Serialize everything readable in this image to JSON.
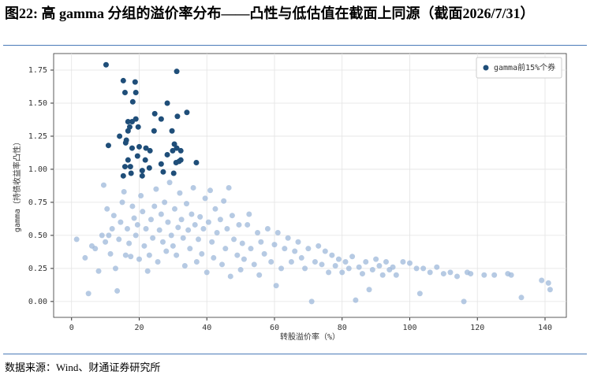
{
  "chart_data": {
    "type": "scatter",
    "title": "图22: 高 gamma 分组的溢价率分布——凸性与低估值在截面上同源（截面2026/7/31）",
    "xlabel": "转股溢价率（%）",
    "ylabel": "gamma（持债收益率凸性）",
    "source": "数据来源：Wind、财通证券研究所",
    "xlim": [
      -5.3,
      146.3
    ],
    "ylim": [
      -0.12,
      1.875
    ],
    "xticks": [
      0,
      20,
      40,
      60,
      80,
      100,
      120,
      140
    ],
    "yticks": [
      {
        "value": 0,
        "label": "0.00"
      },
      {
        "value": 0.25,
        "label": "0.25"
      },
      {
        "value": 0.5,
        "label": "0.50"
      },
      {
        "value": 0.75,
        "label": "0.75"
      },
      {
        "value": 1,
        "label": "1.00"
      },
      {
        "value": 1.25,
        "label": "1.25"
      },
      {
        "value": 1.5,
        "label": "1.50"
      },
      {
        "value": 1.75,
        "label": "1.75"
      }
    ],
    "grid": true,
    "legend": "upper right",
    "series": [
      {
        "color": "#9db8d9",
        "x": [
          1.5,
          4,
          5,
          6,
          7,
          8,
          9,
          9.5,
          10,
          10.5,
          11,
          11.5,
          12,
          12.5,
          13,
          13.5,
          14,
          14.5,
          15,
          15.5,
          16,
          16.5,
          17,
          17.5,
          18,
          18.5,
          19,
          19.5,
          20,
          20.5,
          21,
          21.5,
          22,
          22.5,
          23,
          23.5,
          24,
          24.5,
          25,
          25.5,
          26,
          26.5,
          27,
          27.5,
          28,
          28.5,
          29,
          29.5,
          30,
          30.5,
          31,
          31.5,
          32,
          32.5,
          33,
          33.5,
          34,
          34.5,
          35,
          35.5,
          36,
          36.5,
          37,
          37.5,
          38,
          38.5,
          39,
          39.5,
          40,
          40.5,
          41,
          41.5,
          42,
          42.5,
          43,
          44,
          44.5,
          45,
          45.5,
          46,
          46.5,
          47,
          47.5,
          48,
          49,
          49.5,
          50,
          50.5,
          51,
          52,
          52.5,
          53,
          54,
          55,
          55.5,
          56,
          57,
          58,
          59,
          60,
          60.5,
          61,
          62,
          63,
          64,
          65,
          66,
          67,
          68,
          69,
          70,
          71,
          72,
          73,
          74,
          75,
          76,
          77,
          78,
          79,
          80,
          81,
          82,
          83,
          84,
          85,
          86,
          87,
          88,
          89,
          90,
          91,
          92,
          93,
          94,
          95,
          96,
          98,
          100,
          102,
          103,
          104,
          106,
          108,
          110,
          112,
          114,
          116,
          117,
          118,
          122,
          125,
          129,
          130,
          133,
          139,
          141,
          141.5
        ],
        "values": [
          0.47,
          0.33,
          0.06,
          0.42,
          0.4,
          0.23,
          0.5,
          0.88,
          0.45,
          0.7,
          0.5,
          0.36,
          0.55,
          0.65,
          0.25,
          0.08,
          0.47,
          0.6,
          0.75,
          0.83,
          0.35,
          0.55,
          0.44,
          0.34,
          0.72,
          0.63,
          0.5,
          0.58,
          0.32,
          0.8,
          0.68,
          0.42,
          0.55,
          0.23,
          0.35,
          0.62,
          0.48,
          0.72,
          0.85,
          0.3,
          0.54,
          0.66,
          0.45,
          0.75,
          0.38,
          0.6,
          0.9,
          0.5,
          0.42,
          0.7,
          0.35,
          0.56,
          0.82,
          0.62,
          0.48,
          0.27,
          0.74,
          0.54,
          0.4,
          0.66,
          0.86,
          0.58,
          0.3,
          0.47,
          0.64,
          0.36,
          0.55,
          0.78,
          0.22,
          0.6,
          0.84,
          0.45,
          0.33,
          0.7,
          0.52,
          0.62,
          0.28,
          0.76,
          0.4,
          0.55,
          0.86,
          0.19,
          0.65,
          0.47,
          0.35,
          0.58,
          0.24,
          0.44,
          0.32,
          0.58,
          0.66,
          0.4,
          0.28,
          0.52,
          0.2,
          0.45,
          0.36,
          0.55,
          0.3,
          0.43,
          0.12,
          0.52,
          0.25,
          0.4,
          0.48,
          0.3,
          0.38,
          0.45,
          0.33,
          0.25,
          0.4,
          0.0,
          0.3,
          0.42,
          0.28,
          0.38,
          0.22,
          0.35,
          0.27,
          0.32,
          0.22,
          0.3,
          0.25,
          0.34,
          0.01,
          0.26,
          0.21,
          0.3,
          0.09,
          0.24,
          0.32,
          0.27,
          0.2,
          0.3,
          0.24,
          0.26,
          0.2,
          0.3,
          0.29,
          0.25,
          0.06,
          0.25,
          0.22,
          0.26,
          0.21,
          0.22,
          0.19,
          0.0,
          0.22,
          0.21,
          0.2,
          0.2,
          0.21,
          0.2,
          0.03,
          0.16,
          0.14,
          0.09
        ]
      },
      {
        "name": "gamma前15%个券",
        "color": "#1f4e79",
        "x": [
          10.2,
          31.1,
          15.3,
          18.8,
          15.8,
          19.0,
          18.1,
          28.3,
          24.6,
          34.1,
          31.3,
          26.5,
          19.0,
          16.7,
          17.9,
          17.2,
          19.7,
          16.7,
          14.2,
          16.2,
          16.0,
          10.9,
          24.4,
          29.7,
          30.4,
          31.1,
          32.3,
          29.9,
          22.0,
          20.0,
          23.2,
          17.9,
          19.5,
          28.3,
          32.3,
          36.9,
          16.7,
          17.4,
          15.8,
          21.8,
          26.5,
          30.9,
          31.8,
          23.0,
          20.9,
          27.1,
          17.6,
          30.2,
          15.3,
          20.9
        ],
        "values": [
          1.79,
          1.74,
          1.67,
          1.66,
          1.58,
          1.58,
          1.51,
          1.5,
          1.42,
          1.43,
          1.4,
          1.38,
          1.38,
          1.36,
          1.36,
          1.32,
          1.32,
          1.29,
          1.25,
          1.22,
          1.2,
          1.18,
          1.29,
          1.29,
          1.19,
          1.16,
          1.14,
          1.14,
          1.16,
          1.17,
          1.14,
          1.16,
          1.1,
          1.11,
          1.07,
          1.05,
          1.07,
          1.02,
          1.02,
          1.07,
          1.04,
          1.05,
          1.06,
          1.01,
          0.99,
          0.98,
          0.97,
          0.97,
          0.95,
          0.95
        ]
      }
    ]
  }
}
